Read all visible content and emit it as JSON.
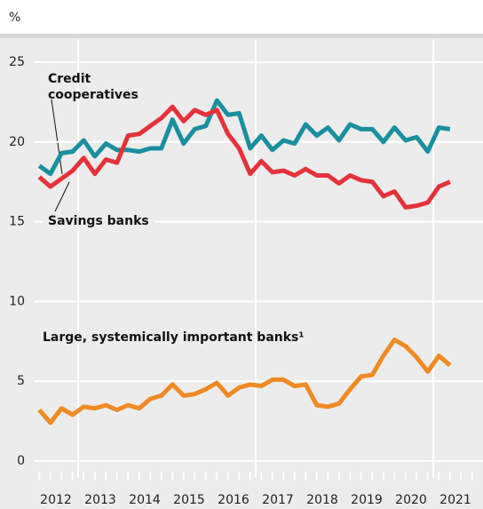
{
  "chart_data": {
    "type": "line",
    "y_unit": "%",
    "years": [
      "2012",
      "2013",
      "2014",
      "2015",
      "2016",
      "2017",
      "2018",
      "2019",
      "2020",
      "2021"
    ],
    "x": [
      2012.125,
      2012.375,
      2012.625,
      2012.875,
      2013.125,
      2013.375,
      2013.625,
      2013.875,
      2014.125,
      2014.375,
      2014.625,
      2014.875,
      2015.125,
      2015.375,
      2015.625,
      2015.875,
      2016.125,
      2016.375,
      2016.625,
      2016.875,
      2017.125,
      2017.375,
      2017.625,
      2017.875,
      2018.125,
      2018.375,
      2018.625,
      2018.875,
      2019.125,
      2019.375,
      2019.625,
      2019.875,
      2020.125,
      2020.375,
      2020.625,
      2020.875,
      2021.125,
      2021.375
    ],
    "xlim": [
      2012,
      2022
    ],
    "xgrid": [
      2013,
      2017,
      2021
    ],
    "ylim": [
      0,
      25
    ],
    "yticks": [
      0,
      5,
      10,
      15,
      20,
      25
    ],
    "grid": true,
    "series": [
      {
        "name": "Credit cooperatives",
        "color": "#1a8f9f",
        "values": [
          18.5,
          18.0,
          19.3,
          19.4,
          20.1,
          19.1,
          19.9,
          19.5,
          19.5,
          19.4,
          19.6,
          19.6,
          21.4,
          19.9,
          20.8,
          21.0,
          22.6,
          21.7,
          21.8,
          19.6,
          20.4,
          19.5,
          20.1,
          19.9,
          21.1,
          20.4,
          20.9,
          20.1,
          21.1,
          20.8,
          20.8,
          20.0,
          20.9,
          20.1,
          20.3,
          19.4,
          20.9,
          20.8
        ]
      },
      {
        "name": "Savings banks",
        "color": "#e5323a",
        "values": [
          17.8,
          17.2,
          17.7,
          18.2,
          19.0,
          18.0,
          18.9,
          18.7,
          20.4,
          20.5,
          21.0,
          21.5,
          22.2,
          21.3,
          22.0,
          21.7,
          22.0,
          20.5,
          19.6,
          18.0,
          18.8,
          18.1,
          18.2,
          17.9,
          18.3,
          17.9,
          17.9,
          17.4,
          17.9,
          17.6,
          17.5,
          16.6,
          16.9,
          15.9,
          16.0,
          16.2,
          17.2,
          17.5
        ]
      },
      {
        "name": "Large, systemically important banks¹",
        "color": "#f08a24",
        "values": [
          3.2,
          2.4,
          3.3,
          2.9,
          3.4,
          3.3,
          3.5,
          3.2,
          3.5,
          3.3,
          3.9,
          4.1,
          4.8,
          4.1,
          4.2,
          4.5,
          4.9,
          4.1,
          4.6,
          4.8,
          4.7,
          5.1,
          5.1,
          4.7,
          4.8,
          3.5,
          3.4,
          3.6,
          4.5,
          5.3,
          5.4,
          6.6,
          7.6,
          7.2,
          6.5,
          5.6,
          6.6,
          6.0
        ]
      }
    ]
  }
}
